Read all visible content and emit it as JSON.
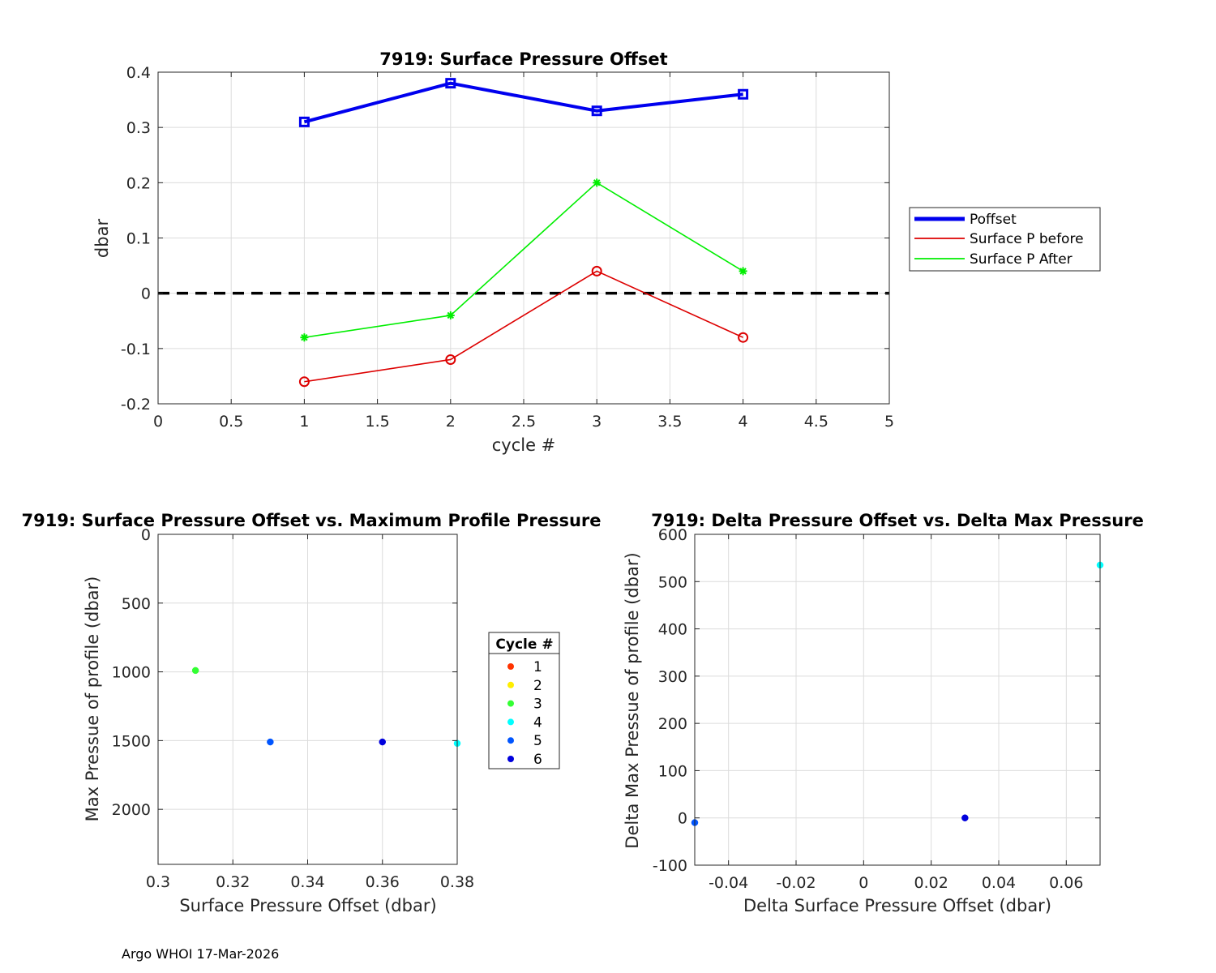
{
  "colors": {
    "poffset": "#0000ee",
    "before": "#dd0000",
    "after": "#00ee00",
    "zero_line": "#000000",
    "cycle_colors": [
      "#ff3300",
      "#ffee00",
      "#33ff33",
      "#00ffff",
      "#0055ff",
      "#0000dd"
    ]
  },
  "footer_text": "Argo WHOI 17-Mar-2026",
  "chart_data": [
    {
      "id": "top",
      "type": "line",
      "title": "7919: Surface Pressure Offset",
      "xlabel": "cycle #",
      "ylabel": "dbar",
      "xlim": [
        0,
        5
      ],
      "ylim": [
        -0.2,
        0.4
      ],
      "xticks": [
        0,
        0.5,
        1,
        1.5,
        2,
        2.5,
        3,
        3.5,
        4,
        4.5,
        5
      ],
      "xtick_labels": [
        "0",
        "0.5",
        "1",
        "1.5",
        "2",
        "2.5",
        "3",
        "3.5",
        "4",
        "4.5",
        "5"
      ],
      "yticks": [
        -0.2,
        -0.1,
        0,
        0.1,
        0.2,
        0.3,
        0.4
      ],
      "ytick_labels": [
        "-0.2",
        "-0.1",
        "0",
        "0.1",
        "0.2",
        "0.3",
        "0.4"
      ],
      "grid": true,
      "zero_line": 0,
      "legend_position": "outside-right",
      "series": [
        {
          "name": "Poffset",
          "color_key": "poffset",
          "marker": "square",
          "thick": true,
          "x": [
            1,
            2,
            3,
            4
          ],
          "y": [
            0.31,
            0.38,
            0.33,
            0.36
          ]
        },
        {
          "name": "Surface P before",
          "color_key": "before",
          "marker": "circle",
          "thick": false,
          "x": [
            1,
            2,
            3,
            4
          ],
          "y": [
            -0.16,
            -0.12,
            0.04,
            -0.08
          ]
        },
        {
          "name": "Surface P After",
          "color_key": "after",
          "marker": "star",
          "thick": false,
          "x": [
            1,
            2,
            3,
            4
          ],
          "y": [
            -0.08,
            -0.04,
            0.2,
            0.04
          ]
        }
      ]
    },
    {
      "id": "bottom-left",
      "type": "scatter",
      "title": "7919: Surface Pressure Offset vs. Maximum Profile Pressure",
      "xlabel": "Surface Pressure Offset (dbar)",
      "ylabel": "Max Pressue of profile (dbar)",
      "xlim": [
        0.3,
        0.38
      ],
      "ylim": [
        0,
        2400
      ],
      "y_reversed": true,
      "xticks": [
        0.3,
        0.32,
        0.34,
        0.36,
        0.38
      ],
      "xtick_labels": [
        "0.3",
        "0.32",
        "0.34",
        "0.36",
        "0.38"
      ],
      "yticks": [
        0,
        500,
        1000,
        1500,
        2000
      ],
      "ytick_labels": [
        "0",
        "500",
        "1000",
        "1500",
        "2000"
      ],
      "grid": true,
      "legend_title": "Cycle #",
      "legend_entries": [
        "1",
        "2",
        "3",
        "4",
        "5",
        "6"
      ],
      "legend_position": "outside-right",
      "points": [
        {
          "cycle": 3,
          "x": 0.31,
          "y": 990
        },
        {
          "cycle": 5,
          "x": 0.33,
          "y": 1510
        },
        {
          "cycle": 6,
          "x": 0.36,
          "y": 1510
        },
        {
          "cycle": 4,
          "x": 0.38,
          "y": 1520
        }
      ]
    },
    {
      "id": "bottom-right",
      "type": "scatter",
      "title": "7919: Delta Pressure Offset vs. Delta Max Pressure",
      "xlabel": "Delta Surface Pressure Offset (dbar)",
      "ylabel": "Delta Max Pressue of profile (dbar)",
      "xlim": [
        -0.05,
        0.07
      ],
      "ylim": [
        -100,
        600
      ],
      "xticks": [
        -0.04,
        -0.02,
        0,
        0.02,
        0.04,
        0.06
      ],
      "xtick_labels": [
        "-0.04",
        "-0.02",
        "0",
        "0.02",
        "0.04",
        "0.06"
      ],
      "yticks": [
        -100,
        0,
        100,
        200,
        300,
        400,
        500,
        600
      ],
      "ytick_labels": [
        "-100",
        "0",
        "100",
        "200",
        "300",
        "400",
        "500",
        "600"
      ],
      "grid": true,
      "points": [
        {
          "cycle": 5,
          "x": -0.05,
          "y": -10
        },
        {
          "cycle": 6,
          "x": 0.03,
          "y": 0
        },
        {
          "cycle": 4,
          "x": 0.07,
          "y": 535
        }
      ]
    }
  ]
}
